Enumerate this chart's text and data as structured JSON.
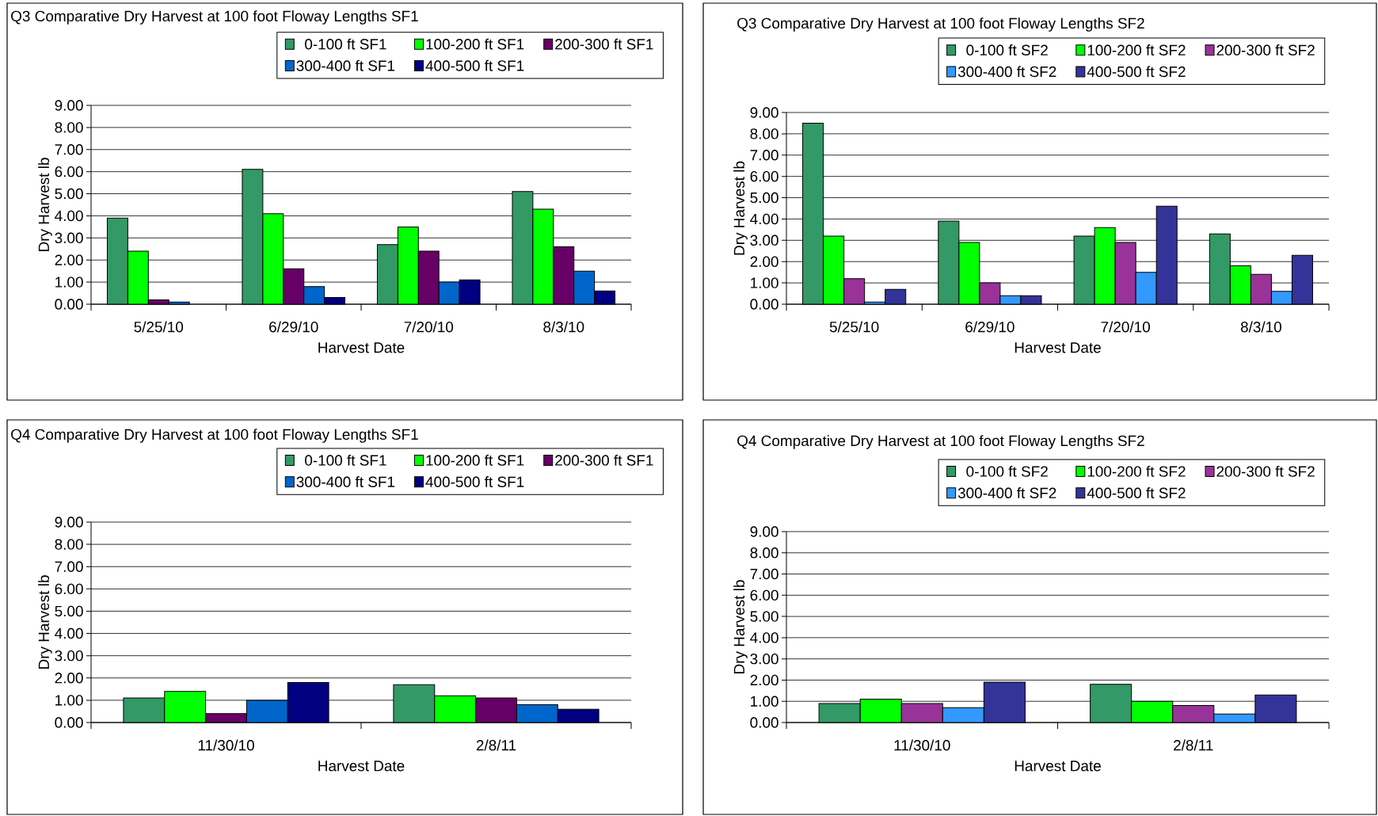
{
  "chart_data": [
    {
      "type": "bar",
      "title": "Q3 Comparative Dry Harvest at 100 foot Floway Lengths SF1",
      "xlabel": "Harvest Date",
      "ylabel": "Dry Harvest lb",
      "categories": [
        "5/25/10",
        "6/29/10",
        "7/20/10",
        "8/3/10"
      ],
      "series": [
        {
          "name": "0-100 ft SF1",
          "color": "#339966",
          "values": [
            3.9,
            6.1,
            2.7,
            5.1
          ]
        },
        {
          "name": "100-200  ft SF1",
          "color": "#00ff00",
          "values": [
            2.4,
            4.1,
            3.5,
            4.3
          ]
        },
        {
          "name": "200-300 ft SF1",
          "color": "#660066",
          "values": [
            0.2,
            1.6,
            2.4,
            2.6
          ]
        },
        {
          "name": "300-400 ft SF1",
          "color": "#0066cc",
          "values": [
            0.1,
            0.8,
            1.0,
            1.5
          ]
        },
        {
          "name": "400-500 ft SF1",
          "color": "#000080",
          "values": [
            null,
            0.3,
            1.1,
            0.6
          ]
        }
      ],
      "ylim": [
        0,
        9
      ],
      "yticks": [
        {
          "value": 0,
          "label": "0.00"
        },
        {
          "value": 1,
          "label": "1.00"
        },
        {
          "value": 2,
          "label": "2.00"
        },
        {
          "value": 3,
          "label": "3.00"
        },
        {
          "value": 4,
          "label": "4.00"
        },
        {
          "value": 5,
          "label": "5.00"
        },
        {
          "value": 6,
          "label": "6.00"
        },
        {
          "value": 7,
          "label": "7.00"
        },
        {
          "value": 8,
          "label": "8.00"
        },
        {
          "value": 9,
          "label": "9.00"
        }
      ],
      "grid": "y",
      "legend": "top right"
    },
    {
      "type": "bar",
      "title": "Q3 Comparative Dry Harvest at 100 foot Floway Lengths SF2",
      "xlabel": "Harvest Date",
      "ylabel": "Dry Harvest lb",
      "categories": [
        "5/25/10",
        "6/29/10",
        "7/20/10",
        "8/3/10"
      ],
      "series": [
        {
          "name": "0-100 ft SF2",
          "color": "#339966",
          "values": [
            8.5,
            3.9,
            3.2,
            3.3
          ]
        },
        {
          "name": "100-200  ft SF2",
          "color": "#00ff00",
          "values": [
            3.2,
            2.9,
            3.6,
            1.8
          ]
        },
        {
          "name": "200-300 ft SF2",
          "color": "#993399",
          "values": [
            1.2,
            1.0,
            2.9,
            1.4
          ]
        },
        {
          "name": "300-400 ft SF2",
          "color": "#3399ff",
          "values": [
            0.1,
            0.4,
            1.5,
            0.6
          ]
        },
        {
          "name": "400-500 ft SF2",
          "color": "#333399",
          "values": [
            0.7,
            0.4,
            4.6,
            2.3
          ]
        }
      ],
      "ylim": [
        0,
        9
      ],
      "yticks": [
        {
          "value": 0,
          "label": "0.00"
        },
        {
          "value": 1,
          "label": "1.00"
        },
        {
          "value": 2,
          "label": "2.00"
        },
        {
          "value": 3,
          "label": "3.00"
        },
        {
          "value": 4,
          "label": "4.00"
        },
        {
          "value": 5,
          "label": "5.00"
        },
        {
          "value": 6,
          "label": "6.00"
        },
        {
          "value": 7,
          "label": "7.00"
        },
        {
          "value": 8,
          "label": "8.00"
        },
        {
          "value": 9,
          "label": "9.00"
        }
      ],
      "grid": "y",
      "legend": "top right"
    },
    {
      "type": "bar",
      "title": "Q4 Comparative Dry Harvest at 100 foot Floway Lengths SF1",
      "xlabel": "Harvest Date",
      "ylabel": "Dry Harvest lb",
      "categories": [
        "11/30/10",
        "2/8/11"
      ],
      "series": [
        {
          "name": "0-100 ft SF1",
          "color": "#339966",
          "values": [
            1.1,
            1.7
          ]
        },
        {
          "name": "100-200  ft SF1",
          "color": "#00ff00",
          "values": [
            1.4,
            1.2
          ]
        },
        {
          "name": "200-300 ft SF1",
          "color": "#660066",
          "values": [
            0.4,
            1.1
          ]
        },
        {
          "name": "300-400 ft SF1",
          "color": "#0066cc",
          "values": [
            1.0,
            0.8
          ]
        },
        {
          "name": "400-500 ft SF1",
          "color": "#000080",
          "values": [
            1.8,
            0.6
          ]
        }
      ],
      "ylim": [
        0,
        9
      ],
      "yticks": [
        {
          "value": 0,
          "label": "0.00"
        },
        {
          "value": 1,
          "label": "1.00"
        },
        {
          "value": 2,
          "label": "2.00"
        },
        {
          "value": 3,
          "label": "3.00"
        },
        {
          "value": 4,
          "label": "4.00"
        },
        {
          "value": 5,
          "label": "5.00"
        },
        {
          "value": 6,
          "label": "6.00"
        },
        {
          "value": 7,
          "label": "7.00"
        },
        {
          "value": 8,
          "label": "8.00"
        },
        {
          "value": 9,
          "label": "9.00"
        }
      ],
      "grid": "y",
      "legend": "top right"
    },
    {
      "type": "bar",
      "title": "Q4 Comparative Dry Harvest at 100 foot Floway Lengths SF2",
      "xlabel": "Harvest Date",
      "ylabel": "Dry Harvest lb",
      "categories": [
        "11/30/10",
        "2/8/11"
      ],
      "series": [
        {
          "name": "0-100 ft SF2",
          "color": "#339966",
          "values": [
            0.9,
            1.8
          ]
        },
        {
          "name": "100-200  ft SF2",
          "color": "#00ff00",
          "values": [
            1.1,
            1.0
          ]
        },
        {
          "name": "200-300 ft SF2",
          "color": "#993399",
          "values": [
            0.9,
            0.8
          ]
        },
        {
          "name": "300-400 ft SF2",
          "color": "#3399ff",
          "values": [
            0.7,
            0.4
          ]
        },
        {
          "name": "400-500 ft SF2",
          "color": "#333399",
          "values": [
            1.9,
            1.3
          ]
        }
      ],
      "ylim": [
        0,
        9
      ],
      "yticks": [
        {
          "value": 0,
          "label": "0.00"
        },
        {
          "value": 1,
          "label": "1.00"
        },
        {
          "value": 2,
          "label": "2.00"
        },
        {
          "value": 3,
          "label": "3.00"
        },
        {
          "value": 4,
          "label": "4.00"
        },
        {
          "value": 5,
          "label": "5.00"
        },
        {
          "value": 6,
          "label": "6.00"
        },
        {
          "value": 7,
          "label": "7.00"
        },
        {
          "value": 8,
          "label": "8.00"
        },
        {
          "value": 9,
          "label": "9.00"
        }
      ],
      "grid": "y",
      "legend": "top right"
    }
  ]
}
